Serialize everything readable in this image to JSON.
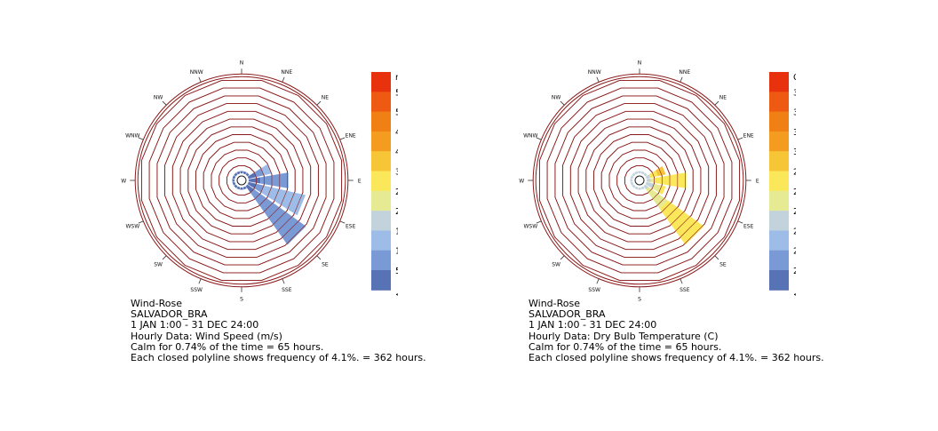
{
  "chart_data": [
    {
      "type": "wind-rose",
      "directions": [
        "N",
        "NNE",
        "NE",
        "ENE",
        "E",
        "ESE",
        "SE",
        "SSE",
        "S",
        "SSW",
        "SW",
        "WSW",
        "W",
        "WNW",
        "NW",
        "NNW"
      ],
      "rings": 12,
      "ring_frequency_percent": 4.1,
      "ring_hours": 362,
      "calm_percent": 0.74,
      "calm_hours": 65,
      "unit": "m/s",
      "legend_labels": [
        "m/s",
        "59.80<",
        "53.82",
        "47.84",
        "41.86",
        "35.88",
        "29.90",
        "23.92",
        "17.94",
        "11.96",
        "5.98",
        "<0.00"
      ],
      "legend_colors": [
        "#e8320e",
        "#ee5a12",
        "#f07f14",
        "#f39c1f",
        "#f7c637",
        "#fbe85a",
        "#e6ea93",
        "#c2d3dc",
        "#9dbde8",
        "#7a9ad6",
        "#5873b5"
      ],
      "bins": [
        "<0.00",
        "5.98",
        "11.96",
        "17.94",
        "23.92"
      ],
      "petals": [
        {
          "direction": "ENE",
          "segments": [
            1,
            1,
            1,
            0,
            0
          ]
        },
        {
          "direction": "E",
          "segments": [
            1.5,
            3.6,
            0,
            0,
            0
          ]
        },
        {
          "direction": "ESE",
          "segments": [
            1,
            1,
            5.4,
            0,
            0
          ]
        },
        {
          "direction": "SE",
          "segments": [
            1,
            8.1,
            0,
            0,
            0
          ]
        },
        {
          "direction": "NNE",
          "segments": [
            0.3,
            0,
            0,
            0,
            0
          ]
        },
        {
          "direction": "NE",
          "segments": [
            0.3,
            0,
            0,
            0,
            0
          ]
        },
        {
          "direction": "SSE",
          "segments": [
            0.3,
            0,
            0,
            0,
            0
          ]
        },
        {
          "direction": "S",
          "segments": [
            0.3,
            0,
            0,
            0,
            0
          ]
        },
        {
          "direction": "SSW",
          "segments": [
            0.3,
            0,
            0,
            0,
            0
          ]
        },
        {
          "direction": "SW",
          "segments": [
            0.3,
            0,
            0,
            0,
            0
          ]
        },
        {
          "direction": "WSW",
          "segments": [
            0.3,
            0,
            0,
            0,
            0
          ]
        },
        {
          "direction": "W",
          "segments": [
            0.3,
            0,
            0,
            0,
            0
          ]
        },
        {
          "direction": "WNW",
          "segments": [
            0.3,
            0,
            0,
            0,
            0
          ]
        },
        {
          "direction": "NW",
          "segments": [
            0.3,
            0,
            0,
            0,
            0
          ]
        },
        {
          "direction": "NNW",
          "segments": [
            0.3,
            0,
            0,
            0,
            0
          ]
        },
        {
          "direction": "N",
          "segments": [
            0.3,
            0,
            0,
            0,
            0
          ]
        }
      ],
      "caption": [
        "Wind-Rose",
        "SALVADOR_BRA",
        "1 JAN 1:00 - 31 DEC 24:00",
        "Hourly Data: Wind Speed (m/s)",
        "Calm for 0.74% of the time = 65 hours.",
        "Each closed polyline shows frequency of 4.1%. = 362 hours."
      ]
    },
    {
      "type": "wind-rose",
      "directions": [
        "N",
        "NNE",
        "NE",
        "ENE",
        "E",
        "ESE",
        "SE",
        "SSE",
        "S",
        "SSW",
        "SW",
        "WSW",
        "W",
        "WNW",
        "NW",
        "NNW"
      ],
      "rings": 12,
      "ring_frequency_percent": 4.1,
      "ring_hours": 362,
      "calm_percent": 0.74,
      "calm_hours": 65,
      "unit": "C",
      "legend_labels": [
        "C",
        "36.90<",
        "35.04",
        "33.18",
        "31.32",
        "29.46",
        "27.60",
        "25.74",
        "23.88",
        "22.02",
        "20.16",
        "<18.30"
      ],
      "legend_colors": [
        "#e8320e",
        "#ee5a12",
        "#f07f14",
        "#f39c1f",
        "#f7c637",
        "#fbe85a",
        "#e6ea93",
        "#c2d3dc",
        "#9dbde8",
        "#7a9ad6",
        "#5873b5"
      ],
      "bins": [
        "25.74",
        "27.60",
        "29.46",
        "31.32"
      ],
      "petals": [
        {
          "direction": "ENE",
          "segments": [
            0.5,
            0,
            1,
            1
          ]
        },
        {
          "direction": "E",
          "segments": [
            0.5,
            0.5,
            4.1,
            0
          ]
        },
        {
          "direction": "ESE",
          "segments": [
            1,
            1,
            0.5,
            0
          ]
        },
        {
          "direction": "SE",
          "segments": [
            0.5,
            3,
            5.6,
            0
          ]
        },
        {
          "direction": "NNE",
          "segments": [
            0.3,
            0,
            0,
            0
          ]
        },
        {
          "direction": "NE",
          "segments": [
            0.3,
            0,
            0,
            0
          ]
        },
        {
          "direction": "SSE",
          "segments": [
            0.3,
            0,
            0,
            0
          ]
        },
        {
          "direction": "S",
          "segments": [
            0.3,
            0,
            0,
            0
          ]
        },
        {
          "direction": "SSW",
          "segments": [
            0.3,
            0,
            0,
            0
          ]
        },
        {
          "direction": "SW",
          "segments": [
            0.3,
            0,
            0,
            0
          ]
        },
        {
          "direction": "WSW",
          "segments": [
            0.3,
            0,
            0,
            0
          ]
        },
        {
          "direction": "W",
          "segments": [
            0.3,
            0,
            0,
            0
          ]
        },
        {
          "direction": "WNW",
          "segments": [
            0.3,
            0,
            0,
            0
          ]
        },
        {
          "direction": "NW",
          "segments": [
            0.3,
            0,
            0,
            0
          ]
        },
        {
          "direction": "NNW",
          "segments": [
            0.3,
            0,
            0,
            0
          ]
        },
        {
          "direction": "N",
          "segments": [
            0.3,
            0,
            0,
            0
          ]
        }
      ],
      "segment_colors": [
        "#c2d3dc",
        "#e6ea93",
        "#fbe85a",
        "#f7c637"
      ],
      "caption": [
        "Wind-Rose",
        "SALVADOR_BRA",
        "1 JAN 1:00 - 31 DEC 24:00",
        "Hourly Data: Dry Bulb Temperature (C)",
        "Calm for 0.74% of the time = 65 hours.",
        "Each closed polyline shows frequency of 4.1%. = 362 hours."
      ]
    }
  ]
}
